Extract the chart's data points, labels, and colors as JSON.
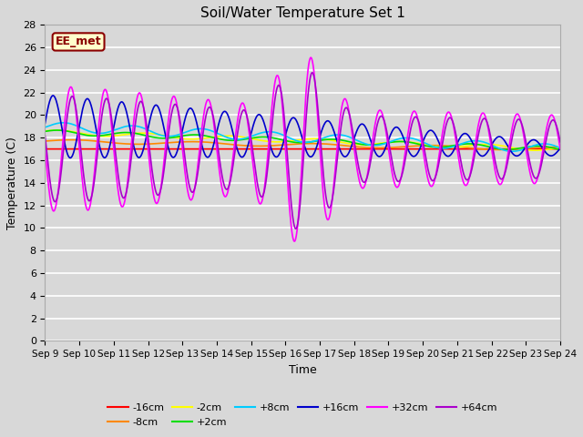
{
  "title": "Soil/Water Temperature Set 1",
  "xlabel": "Time",
  "ylabel": "Temperature (C)",
  "xlim": [
    0,
    15
  ],
  "ylim": [
    0,
    28
  ],
  "yticks": [
    0,
    2,
    4,
    6,
    8,
    10,
    12,
    14,
    16,
    18,
    20,
    22,
    24,
    26,
    28
  ],
  "xtick_labels": [
    "Sep 9",
    "Sep 10",
    "Sep 11",
    "Sep 12",
    "Sep 13",
    "Sep 14",
    "Sep 15",
    "Sep 16",
    "Sep 17",
    "Sep 18",
    "Sep 19",
    "Sep 20",
    "Sep 21",
    "Sep 22",
    "Sep 23",
    "Sep 24"
  ],
  "bg_color": "#d8d8d8",
  "annotation_text": "EE_met",
  "annotation_box_color": "#ffffcc",
  "annotation_box_edge": "#8b0000",
  "series_order": [
    "-16cm",
    "-8cm",
    "-2cm",
    "+2cm",
    "+8cm",
    "+16cm",
    "+32cm",
    "+64cm"
  ],
  "series": {
    "-16cm": {
      "color": "#ff0000",
      "lw": 1.2
    },
    "-8cm": {
      "color": "#ff8800",
      "lw": 1.2
    },
    "-2cm": {
      "color": "#ffff00",
      "lw": 1.2
    },
    "+2cm": {
      "color": "#00dd00",
      "lw": 1.2
    },
    "+8cm": {
      "color": "#00ccff",
      "lw": 1.2
    },
    "+16cm": {
      "color": "#0000cc",
      "lw": 1.2
    },
    "+32cm": {
      "color": "#ff00ff",
      "lw": 1.2
    },
    "+64cm": {
      "color": "#aa00cc",
      "lw": 1.2
    }
  },
  "legend_ncol_row1": 6,
  "legend_ncol_row2": 2
}
